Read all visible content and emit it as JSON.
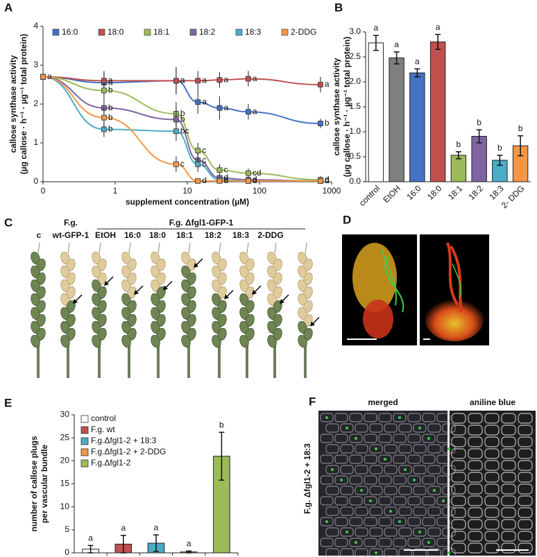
{
  "chart_data": [
    {
      "type": "line",
      "panel_label": "A",
      "y_label": [
        "callose synthase activity",
        "(µg callose · h⁻¹ · µg⁻¹ total protein)"
      ],
      "x_label": "supplement concentration (µM)",
      "x_scale": "log",
      "x": [
        0.1,
        0.7,
        7,
        14,
        28,
        70,
        700
      ],
      "xlim": [
        0.1,
        1000
      ],
      "xticks": [
        {
          "value": 0.1,
          "label": "0"
        },
        1,
        10,
        100,
        1000
      ],
      "ylim": [
        0,
        4
      ],
      "yticks": [
        0,
        1,
        2,
        3,
        4
      ],
      "series": [
        {
          "name": "16:0",
          "color": "#4472c4",
          "values": [
            2.7,
            2.55,
            2.6,
            2.05,
            1.9,
            1.8,
            1.5
          ],
          "errors": [
            0.05,
            0.3,
            0.35,
            0.3,
            0.3,
            0.2,
            0.12
          ],
          "labels": [
            null,
            "a",
            "a",
            "a",
            "a",
            "a",
            "b"
          ]
        },
        {
          "name": "18:0",
          "color": "#c0504d",
          "values": [
            2.7,
            2.6,
            2.6,
            2.6,
            2.62,
            2.65,
            2.5
          ],
          "errors": [
            0.05,
            0.2,
            0.35,
            0.25,
            0.2,
            0.2,
            0.2
          ],
          "labels": [
            "a",
            "a",
            "a",
            "a",
            "a",
            "a",
            "a"
          ]
        },
        {
          "name": "18:1",
          "color": "#9bbb59",
          "values": [
            2.7,
            2.35,
            1.75,
            0.8,
            0.3,
            0.22,
            0.05
          ],
          "errors": [
            0.05,
            0.2,
            0.3,
            0.2,
            0.15,
            0.12,
            0.1
          ],
          "labels": [
            null,
            "b",
            "b",
            "c",
            "c",
            "cd",
            "d"
          ]
        },
        {
          "name": "18:2",
          "color": "#8064a2",
          "values": [
            2.7,
            1.9,
            1.6,
            0.55,
            0.1,
            0.05,
            0.02
          ],
          "errors": [
            0.05,
            0.25,
            0.3,
            0.2,
            0.1,
            0.08,
            0.05
          ],
          "labels": [
            null,
            "b",
            "b",
            "c",
            "d",
            "d",
            "d"
          ]
        },
        {
          "name": "18:3",
          "color": "#4bacc6",
          "values": [
            2.7,
            1.35,
            1.3,
            0.45,
            0.05,
            0.02,
            0.02
          ],
          "errors": [
            0.05,
            0.2,
            0.25,
            0.2,
            0.08,
            0.05,
            0.05
          ],
          "labels": [
            null,
            "b",
            "bc",
            "c",
            "d",
            "d",
            "d"
          ]
        },
        {
          "name": "2-DDG",
          "color": "#f79646",
          "values": [
            2.7,
            1.65,
            0.45,
            0.02,
            0.02,
            0.02,
            0.02
          ],
          "errors": [
            0.05,
            0.25,
            0.2,
            0.05,
            0.05,
            0.05,
            0.05
          ],
          "labels": [
            null,
            "b",
            "c",
            "d",
            "d",
            "d",
            "d"
          ]
        }
      ]
    },
    {
      "type": "bar",
      "panel_label": "B",
      "y_label": [
        "callose synthase activity",
        "(µg callose · h⁻¹ · µg⁻¹ total protein)"
      ],
      "categories": [
        "control",
        "EtOH",
        "16:0",
        "18:0",
        "18:1",
        "18:2",
        "18:3",
        "2- DDG"
      ],
      "values": [
        2.78,
        2.48,
        2.18,
        2.8,
        0.53,
        0.91,
        0.43,
        0.72
      ],
      "errors": [
        0.15,
        0.12,
        0.08,
        0.15,
        0.07,
        0.13,
        0.1,
        0.2
      ],
      "letters": [
        "a",
        "a",
        "a",
        "a",
        "b",
        "b",
        "b",
        "b"
      ],
      "colors": [
        "#ffffff",
        "#7f7f7f",
        "#4472c4",
        "#c0504d",
        "#9bbb59",
        "#8064a2",
        "#4bacc6",
        "#f79646"
      ],
      "ylim": [
        0,
        3
      ],
      "yticks": [
        {
          "value": 0,
          "label": "0.0"
        },
        {
          "value": 0.5,
          "label": "0.5"
        },
        {
          "value": 1,
          "label": "1.0"
        },
        {
          "value": 1.5,
          "label": "1.5"
        },
        {
          "value": 2,
          "label": "2.0"
        },
        {
          "value": 2.5,
          "label": "2.5"
        },
        {
          "value": 3,
          "label": "3.0"
        }
      ]
    },
    {
      "type": "bar",
      "panel_label": "E",
      "y_label": [
        "number of callose plugs",
        "per vascular bundle"
      ],
      "categories": [
        null
      ],
      "series": [
        {
          "name": "control",
          "color": "#ffffff",
          "values": [
            0.8
          ],
          "errors": [
            0.8
          ],
          "letters": [
            "a"
          ]
        },
        {
          "name": "F.g. wt",
          "color": "#c0504d",
          "values": [
            1.9
          ],
          "errors": [
            1.9
          ],
          "letters": [
            "a"
          ]
        },
        {
          "name": "F.g.Δfgl1-2 + 18:3",
          "color": "#4bacc6",
          "values": [
            2.1
          ],
          "errors": [
            1.8
          ],
          "letters": [
            "a"
          ]
        },
        {
          "name": "F.g.Δfgl1-2 + 2-DDG",
          "color": "#f79646",
          "values": [
            0.2
          ],
          "errors": [
            0.2
          ],
          "letters": [
            "a"
          ]
        },
        {
          "name": "F.g.Δfgl1-2",
          "color": "#9bbb59",
          "values": [
            21
          ],
          "errors": [
            5.2
          ],
          "letters": [
            "b"
          ]
        }
      ],
      "ylim": [
        0,
        30
      ],
      "yticks": [
        0,
        5,
        10,
        15,
        20,
        25,
        30
      ]
    }
  ],
  "panel_c": {
    "label": "C",
    "control": "c",
    "wt": [
      "F.g.",
      "wt-GFP-1"
    ],
    "mutant": "F.g. Δfgl1-GFP-1",
    "treatments": [
      "EtOH",
      "16:0",
      "18:0",
      "18:1",
      "18:2",
      "18:3",
      "2-DDG"
    ]
  },
  "panel_d": {
    "label": "D"
  },
  "panel_f": {
    "label": "F",
    "strain": "F.g. Δfgl1-2 + 18:3",
    "titles": [
      "merged",
      "aniline blue"
    ]
  }
}
